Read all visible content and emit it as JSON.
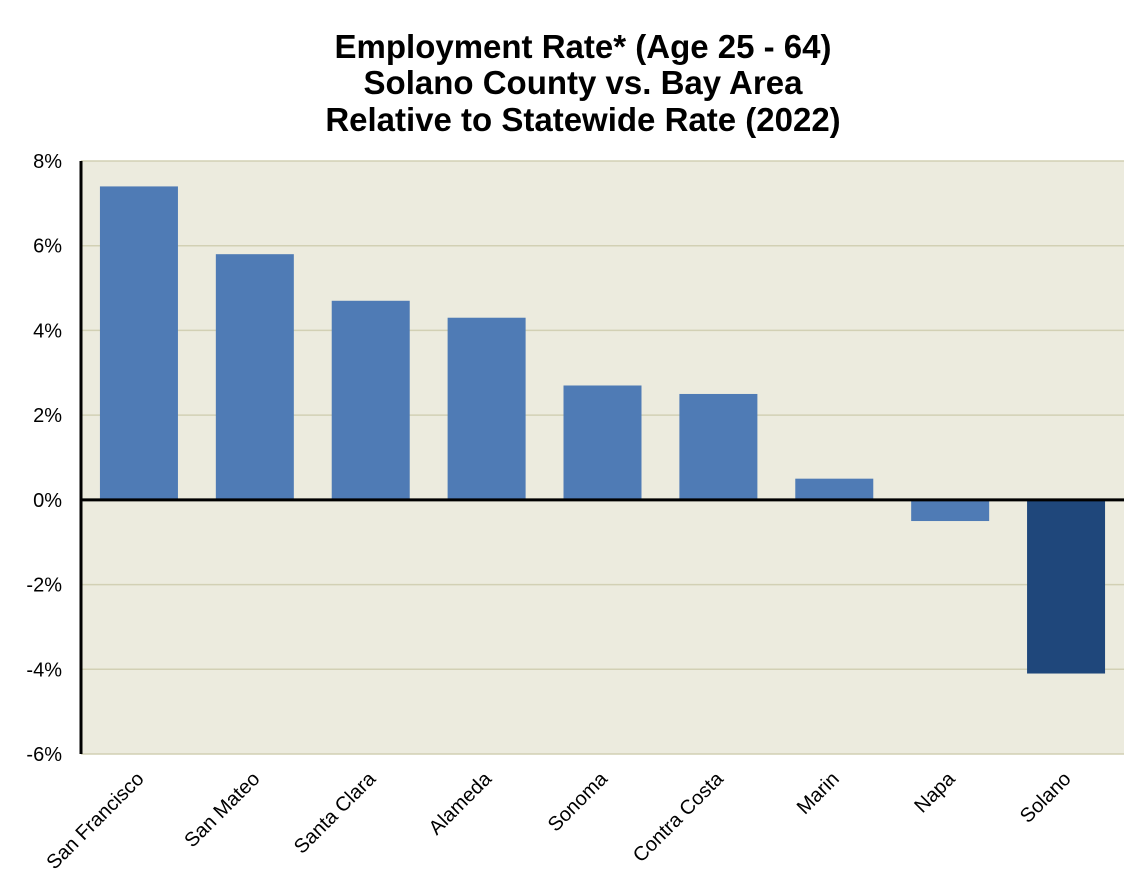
{
  "chart_data": {
    "type": "bar",
    "title": "Employment Rate* (Age 25 - 64)",
    "subtitle": [
      "Solano County vs. Bay Area",
      "Relative to Statewide Rate (2022)"
    ],
    "xlabel": "",
    "ylabel": "",
    "categories": [
      "San Francisco",
      "San Mateo",
      "Santa Clara",
      "Alameda",
      "Sonoma",
      "Contra Costa",
      "Marin",
      "Napa",
      "Solano"
    ],
    "values": [
      7.4,
      5.8,
      4.7,
      4.3,
      2.7,
      2.5,
      0.5,
      -0.5,
      -4.1
    ],
    "unit": "%",
    "ylim": [
      -6,
      8
    ],
    "yticks": [
      8,
      6,
      4,
      2,
      0,
      -2,
      -4,
      -6
    ],
    "ytick_labels": [
      "8%",
      "6%",
      "4%",
      "2%",
      "0%",
      "-2%",
      "-4%",
      "-6%"
    ],
    "grid": true,
    "legend": "none",
    "colors": {
      "bar": "#4f7bb5",
      "highlight_bar": "#1f477b",
      "plot_background": "#ecebde",
      "gridline": "#d2d0b4",
      "axis": "#000000"
    },
    "highlight_category": "Solano"
  }
}
